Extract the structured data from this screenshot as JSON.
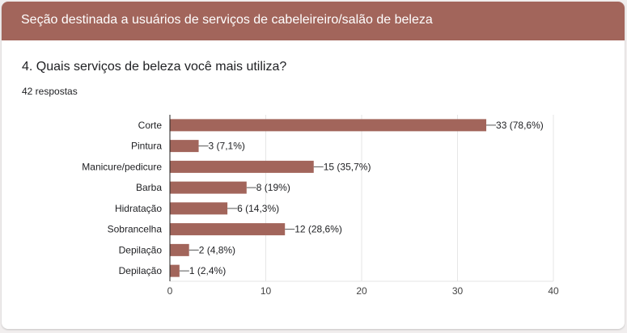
{
  "header": {
    "title": "Seção destinada a usuários de serviços de cabeleireiro/salão de beleza"
  },
  "question": {
    "title": "4. Quais serviços de beleza você mais utiliza?",
    "responses": "42 respostas"
  },
  "colors": {
    "header_bg": "#a2655b",
    "bar": "#a2655b",
    "grid": "#e6e6e6",
    "axis": "#222222"
  },
  "chart_data": {
    "type": "bar",
    "orientation": "horizontal",
    "categories": [
      "Corte",
      "Pintura",
      "Manicure/pedicure",
      "Barba",
      "Hidratação",
      "Sobrancelha",
      "Depilação",
      "Depilação"
    ],
    "values": [
      33,
      3,
      15,
      8,
      6,
      12,
      2,
      1
    ],
    "value_labels": [
      "33 (78,6%)",
      "3 (7,1%)",
      "15 (35,7%)",
      "8 (19%)",
      "6 (14,3%)",
      "12 (28,6%)",
      "2 (4,8%)",
      "1 (2,4%)"
    ],
    "xlim": [
      0,
      40
    ],
    "xticks": [
      0,
      10,
      20,
      30,
      40
    ],
    "grid": true
  }
}
